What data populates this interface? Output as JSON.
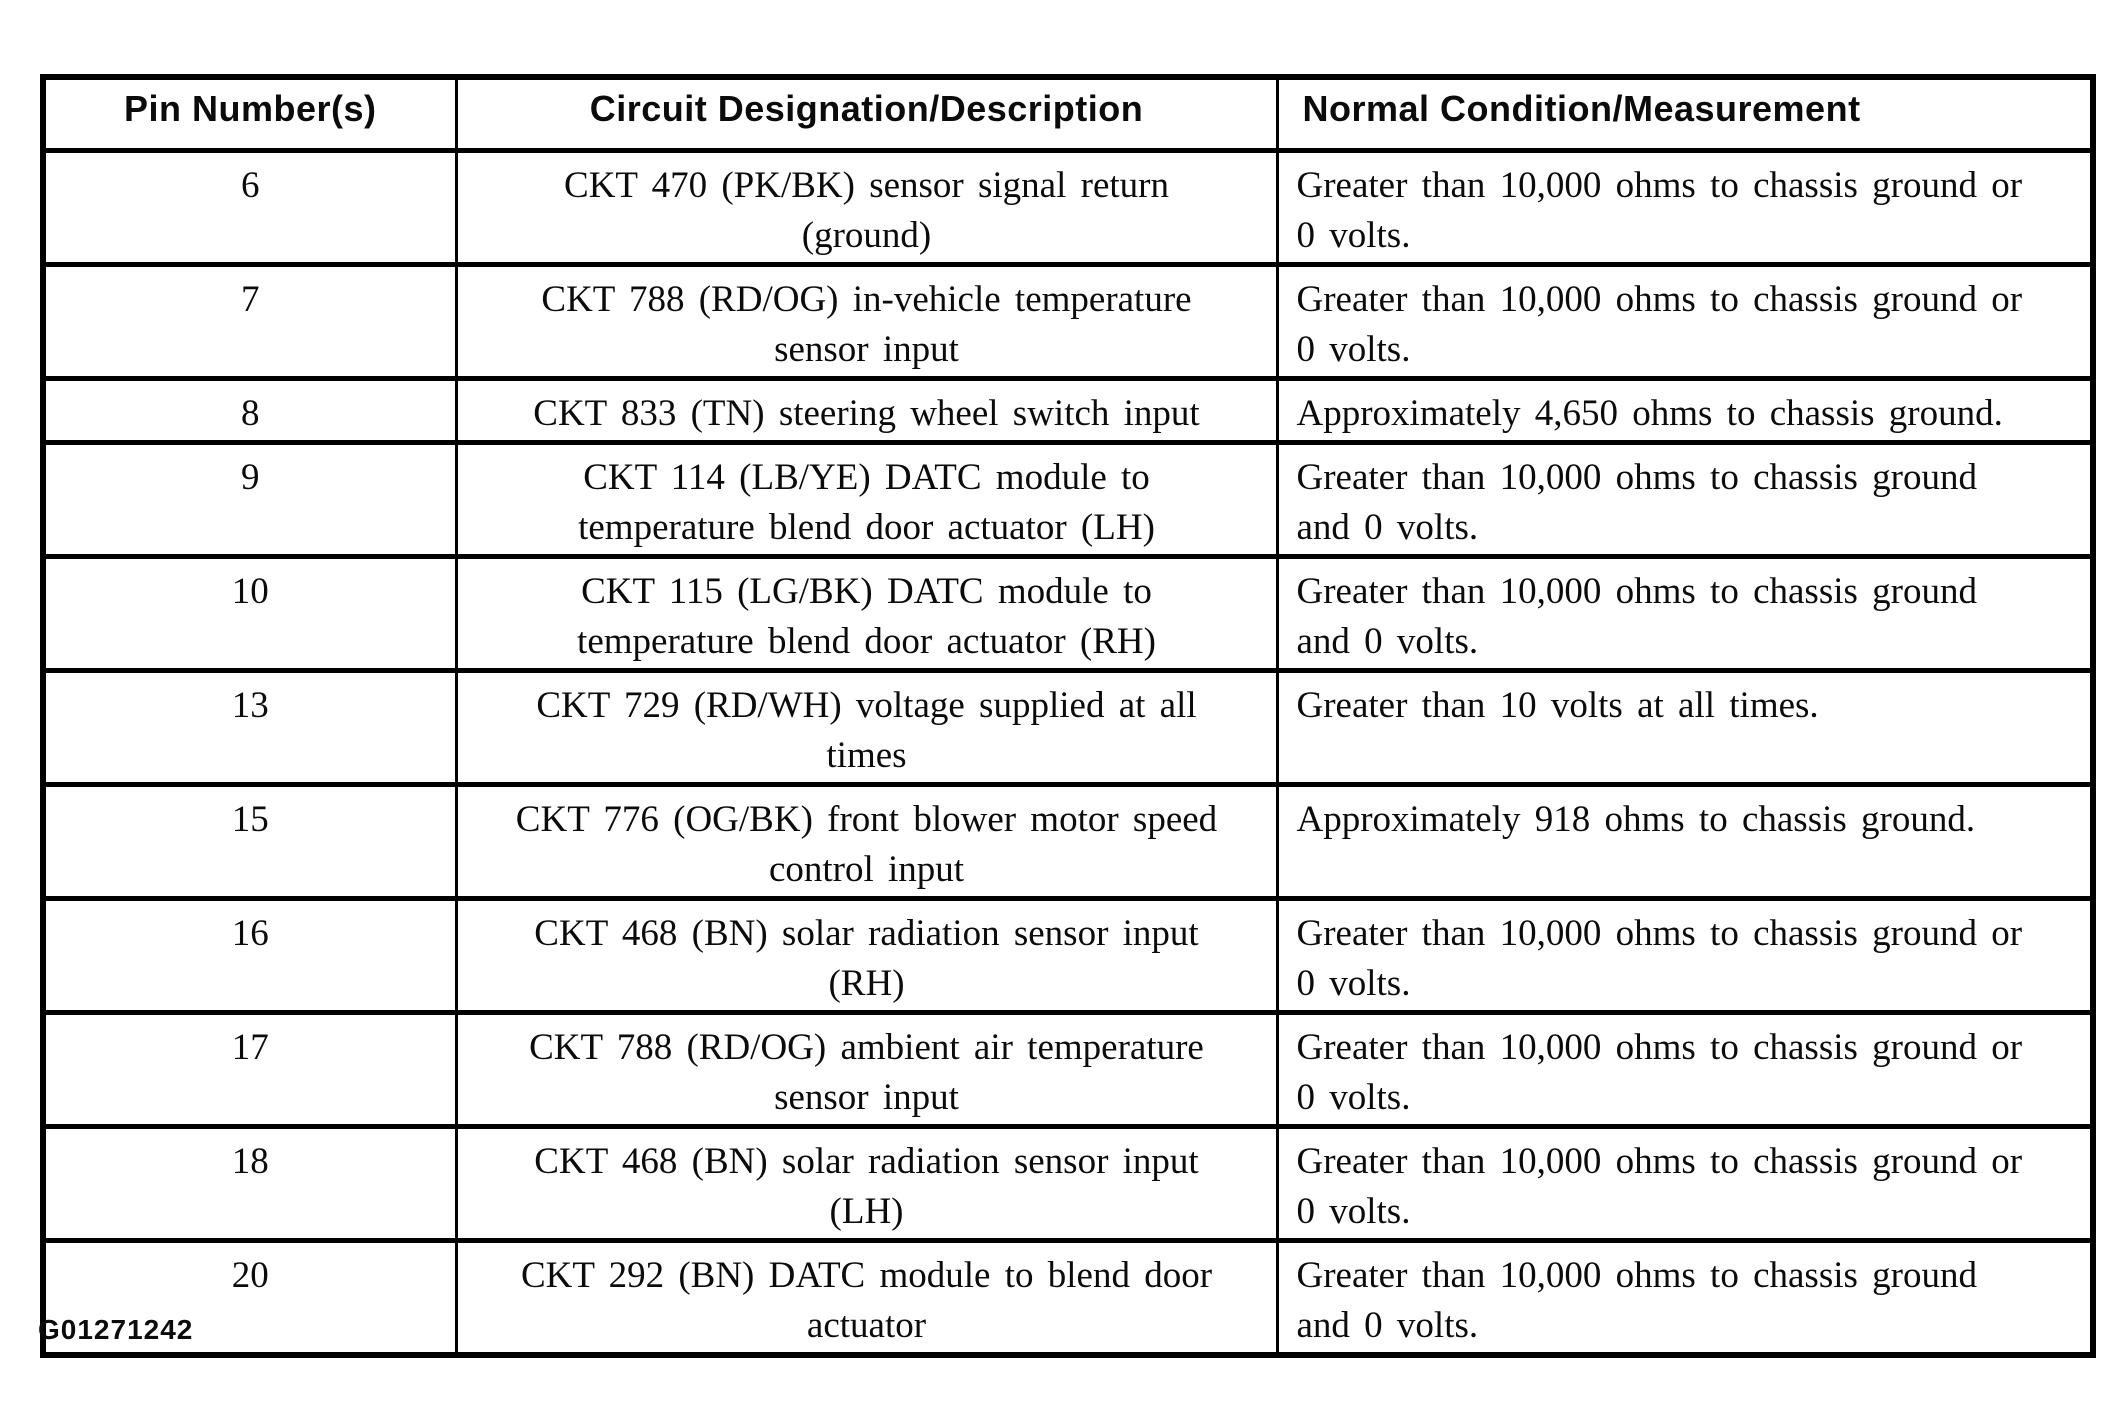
{
  "page": {
    "footer_code": "G01271242"
  },
  "colors": {
    "text": "#0b0b0b",
    "border": "#000000",
    "background": "#ffffff"
  },
  "table": {
    "columns": [
      "Pin Number(s)",
      "Circuit Designation/Description",
      "Normal Condition/Measurement"
    ],
    "rows": [
      {
        "pin": "6",
        "circuit": "CKT 470 (PK/BK) sensor signal return (ground)",
        "condition": "Greater than 10,000 ohms to chassis ground or 0 volts."
      },
      {
        "pin": "7",
        "circuit": "CKT 788 (RD/OG) in-vehicle temperature sensor input",
        "condition": "Greater than 10,000 ohms to chassis ground or 0 volts."
      },
      {
        "pin": "8",
        "circuit": "CKT 833 (TN) steering wheel switch input",
        "condition": "Approximately 4,650 ohms to chassis ground."
      },
      {
        "pin": "9",
        "circuit": "CKT 114 (LB/YE) DATC module to temperature blend door actuator (LH)",
        "condition": "Greater than 10,000 ohms to chassis ground and 0 volts."
      },
      {
        "pin": "10",
        "circuit": "CKT 115 (LG/BK) DATC module to temperature blend door actuator (RH)",
        "condition": "Greater than 10,000 ohms to chassis ground and 0 volts."
      },
      {
        "pin": "13",
        "circuit": "CKT 729 (RD/WH) voltage supplied at all times",
        "condition": "Greater than 10 volts at all times."
      },
      {
        "pin": "15",
        "circuit": "CKT 776 (OG/BK) front blower motor speed control input",
        "condition": "Approximately 918 ohms to chassis ground."
      },
      {
        "pin": "16",
        "circuit": "CKT 468 (BN) solar radiation sensor input (RH)",
        "condition": "Greater than 10,000 ohms to chassis ground or 0 volts."
      },
      {
        "pin": "17",
        "circuit": "CKT 788 (RD/OG) ambient air temperature sensor input",
        "condition": "Greater than 10,000 ohms to chassis ground or 0 volts."
      },
      {
        "pin": "18",
        "circuit": "CKT 468 (BN) solar radiation sensor input (LH)",
        "condition": "Greater than 10,000 ohms to chassis ground or 0 volts."
      },
      {
        "pin": "20",
        "circuit": "CKT 292 (BN) DATC module to blend door actuator",
        "condition": "Greater than 10,000 ohms to chassis ground and 0 volts."
      }
    ]
  }
}
